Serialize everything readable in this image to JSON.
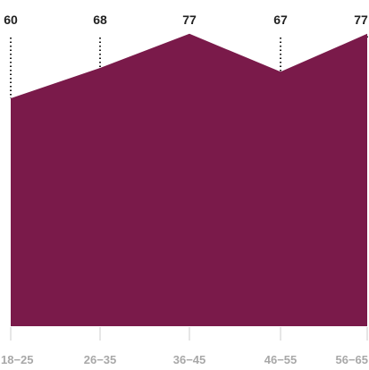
{
  "chart_data": {
    "type": "area",
    "categories": [
      "18−25",
      "26−35",
      "36−45",
      "46−55",
      "56−65"
    ],
    "values": [
      60,
      68,
      77,
      67,
      77
    ],
    "ylim": [
      0,
      100
    ],
    "fill_color": "#7a1a4a",
    "dotted_line_color": "#222222",
    "tick_color": "#cccccc",
    "value_label_color": "#222222",
    "category_label_color": "#a8a8a8",
    "grid": false
  }
}
